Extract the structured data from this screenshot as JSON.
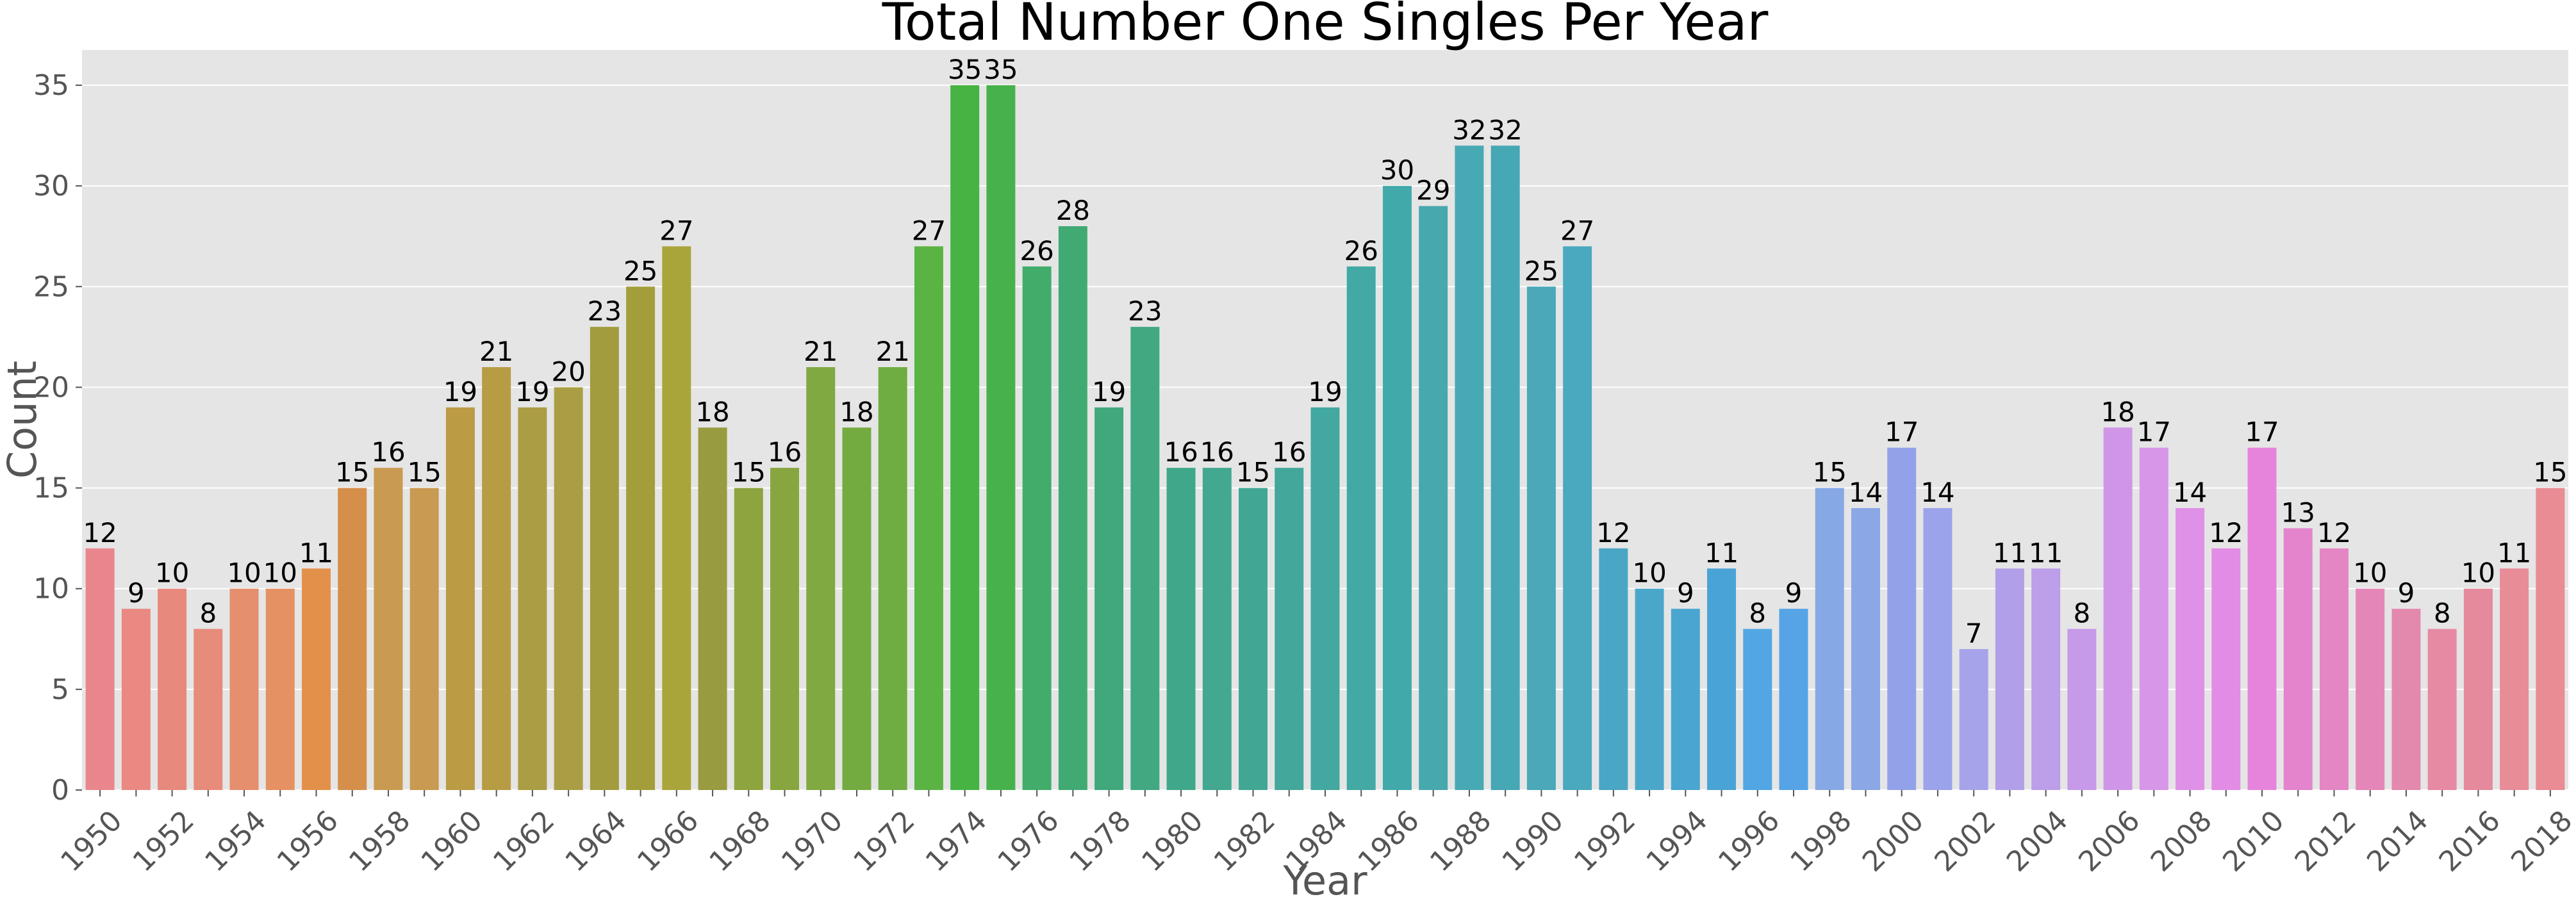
{
  "chart_data": {
    "type": "bar",
    "title": "Total Number One Singles Per Year",
    "xlabel": "Year",
    "ylabel": "Count",
    "ylim": [
      0,
      36.75
    ],
    "yticks": [
      0,
      5,
      10,
      15,
      20,
      25,
      30,
      35
    ],
    "grid": true,
    "categories": [
      "1950",
      "1951",
      "1952",
      "1953",
      "1954",
      "1955",
      "1956",
      "1957",
      "1958",
      "1959",
      "1960",
      "1961",
      "1962",
      "1963",
      "1964",
      "1965",
      "1966",
      "1967",
      "1968",
      "1969",
      "1970",
      "1971",
      "1972",
      "1973",
      "1974",
      "1975",
      "1976",
      "1977",
      "1978",
      "1979",
      "1980",
      "1981",
      "1982",
      "1983",
      "1984",
      "1985",
      "1986",
      "1987",
      "1988",
      "1989",
      "1990",
      "1991",
      "1992",
      "1993",
      "1994",
      "1995",
      "1996",
      "1997",
      "1998",
      "1999",
      "2000",
      "2001",
      "2002",
      "2003",
      "2004",
      "2005",
      "2006",
      "2007",
      "2008",
      "2009",
      "2010",
      "2011",
      "2012",
      "2013",
      "2014",
      "2015",
      "2016",
      "2017",
      "2018"
    ],
    "values": [
      12,
      9,
      10,
      8,
      10,
      10,
      11,
      15,
      16,
      15,
      19,
      21,
      19,
      20,
      23,
      25,
      27,
      18,
      15,
      16,
      21,
      18,
      21,
      27,
      35,
      35,
      26,
      28,
      19,
      23,
      16,
      16,
      15,
      16,
      19,
      26,
      30,
      29,
      32,
      32,
      25,
      27,
      12,
      10,
      9,
      11,
      8,
      9,
      15,
      14,
      17,
      14,
      7,
      11,
      11,
      8,
      18,
      17,
      14,
      12,
      17,
      13,
      12,
      10,
      9,
      8,
      10,
      11,
      15
    ],
    "tick_labels_shown": [
      "1950",
      "1952",
      "1954",
      "1956",
      "1958",
      "1960",
      "1962",
      "1964",
      "1966",
      "1968",
      "1970",
      "1972",
      "1974",
      "1976",
      "1978",
      "1980",
      "1982",
      "1984",
      "1986",
      "1988",
      "1990",
      "1992",
      "1994",
      "1996",
      "1998",
      "2000",
      "2002",
      "2004",
      "2006",
      "2008",
      "2010",
      "2012",
      "2014",
      "2016",
      "2018"
    ],
    "colors": [
      "#e9868d",
      "#e98982",
      "#e8897e",
      "#e78b7b",
      "#e58f6e",
      "#e59163",
      "#e3914a",
      "#d58f4b",
      "#c99a51",
      "#c99a51",
      "#bb9b44",
      "#b79c44",
      "#aa9d44",
      "#a99e43",
      "#a29c3e",
      "#a49e3a",
      "#a9a53b",
      "#999b40",
      "#8da43f",
      "#88a63f",
      "#81a941",
      "#74ab41",
      "#6fad42",
      "#5bb344",
      "#47b343",
      "#47b24c",
      "#42ac6b",
      "#41aa73",
      "#41a87b",
      "#41a882",
      "#40a88a",
      "#42a890",
      "#42a695",
      "#43a79b",
      "#43a8a0",
      "#42a9a5",
      "#42a9ab",
      "#47a8ae",
      "#47a9b4",
      "#46a7b5",
      "#4aa8b9",
      "#4aa9bf",
      "#4aa6c5",
      "#4ba7ca",
      "#4aa6d0",
      "#49a3d6",
      "#52a6e3",
      "#56a4e5",
      "#86a8e5",
      "#8ca7e6",
      "#92a2e9",
      "#9ba4ea",
      "#a7a3ea",
      "#b19fe9",
      "#bd9ee9",
      "#c699e9",
      "#cf96e8",
      "#d796e8",
      "#df91e7",
      "#e38ce5",
      "#e684db",
      "#e484cd",
      "#e486c3",
      "#e487b8",
      "#e489ae",
      "#e68aa3",
      "#e58a9d",
      "#e88c98",
      "#e98c94"
    ]
  }
}
